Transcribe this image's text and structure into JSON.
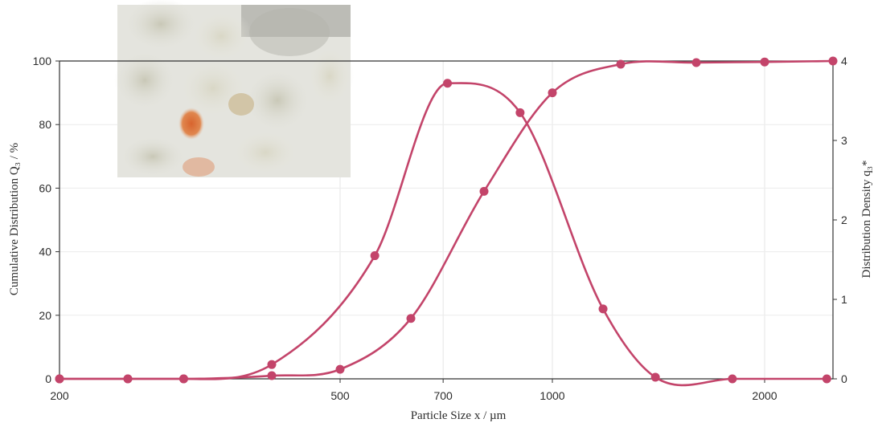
{
  "chart_data": {
    "type": "line",
    "xlabel": "Particle Size x / µm",
    "ylabel_left": "Cumulative Distribution Q₃ / %",
    "ylabel_right": "Distribution Density q₃*",
    "x_scale": "log",
    "xlim": [
      200,
      2500
    ],
    "ylim_left": [
      0,
      100
    ],
    "ylim_right": [
      0,
      4
    ],
    "x_ticks": [
      200,
      500,
      700,
      1000,
      2000
    ],
    "x_tick_labels": [
      "200",
      "500",
      "700",
      "1000",
      "2000"
    ],
    "y_left_ticks": [
      0,
      20,
      40,
      60,
      80,
      100
    ],
    "y_left_tick_labels": [
      "0",
      "20",
      "40",
      "60",
      "80",
      "100"
    ],
    "y_right_ticks": [
      0,
      1,
      2,
      3,
      4
    ],
    "y_right_tick_labels": [
      "0",
      "1",
      "2",
      "3",
      "4"
    ],
    "grid": true,
    "inset": "photo of particles (top-left)",
    "line_color": "#c3446a",
    "series": [
      {
        "axis": "left",
        "x": [
          200,
          250,
          300,
          400,
          500,
          630,
          800,
          1000,
          1250,
          1600,
          2000,
          2500
        ],
        "y": [
          0,
          0,
          0,
          1,
          3,
          19,
          59,
          90,
          99,
          99.5,
          99.7,
          100
        ]
      },
      {
        "axis": "right",
        "x": [
          200,
          250,
          300,
          400,
          560,
          710,
          900,
          1180,
          1400,
          1800,
          2450
        ],
        "y": [
          0,
          0,
          0,
          0.18,
          1.55,
          3.72,
          3.35,
          0.88,
          0.02,
          0,
          0
        ]
      }
    ]
  }
}
